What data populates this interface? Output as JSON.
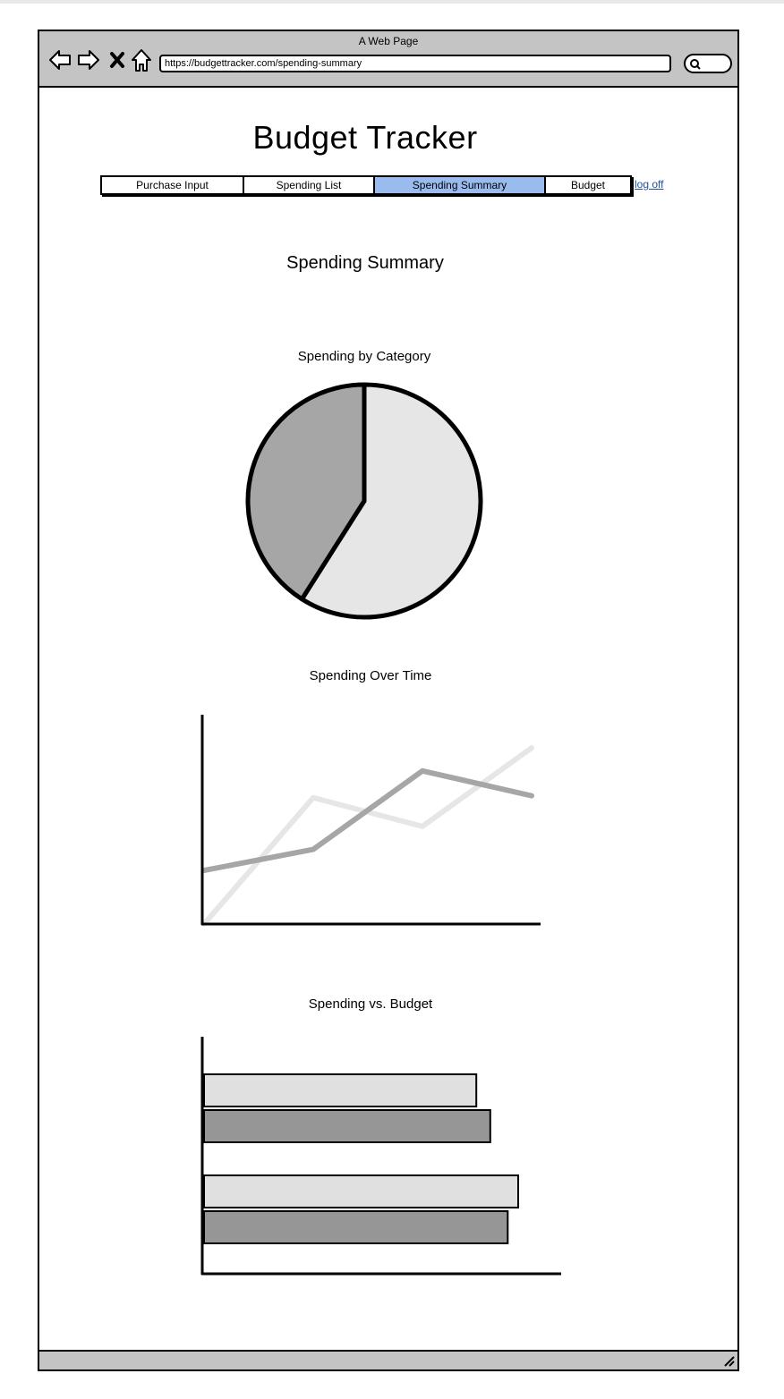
{
  "browser": {
    "window_title": "A Web Page",
    "url": "https://budgettracker.com/spending-summary"
  },
  "header": {
    "app_title": "Budget Tracker"
  },
  "tabs": [
    {
      "label": "Purchase Input",
      "active": false
    },
    {
      "label": "Spending List",
      "active": false
    },
    {
      "label": "Spending Summary",
      "active": true
    },
    {
      "label": "Budget",
      "active": false
    }
  ],
  "logoff_label": "log off",
  "page_title": "Spending Summary",
  "colors": {
    "active_tab": "#99bbee",
    "series_light": "#e6e6e6",
    "series_dark": "#a6a6a6",
    "bar_light": "#e0e0e0",
    "bar_dark": "#969696",
    "link": "#1f4f9a"
  },
  "chart_data": [
    {
      "type": "pie",
      "title": "Spending by Category",
      "slices": [
        {
          "label": "",
          "value": 59,
          "color": "#e6e6e6"
        },
        {
          "label": "",
          "value": 41,
          "color": "#a6a6a6"
        }
      ]
    },
    {
      "type": "line",
      "title": "Spending Over Time",
      "x": [
        0,
        1,
        2,
        3
      ],
      "ylim": [
        0,
        10
      ],
      "series": [
        {
          "name": "",
          "color": "#e6e6e6",
          "values": [
            0,
            6.6,
            5.1,
            9.2
          ]
        },
        {
          "name": "",
          "color": "#a6a6a6",
          "values": [
            2.8,
            3.9,
            8.0,
            6.7
          ]
        }
      ],
      "xlabel": "",
      "ylabel": ""
    },
    {
      "type": "bar",
      "orientation": "horizontal",
      "title": "Spending vs. Budget",
      "categories": [
        "",
        ""
      ],
      "xlim": [
        0,
        100
      ],
      "series": [
        {
          "name": "",
          "color": "#e0e0e0",
          "values": [
            78,
            90
          ]
        },
        {
          "name": "",
          "color": "#969696",
          "values": [
            82,
            87
          ]
        }
      ]
    }
  ]
}
